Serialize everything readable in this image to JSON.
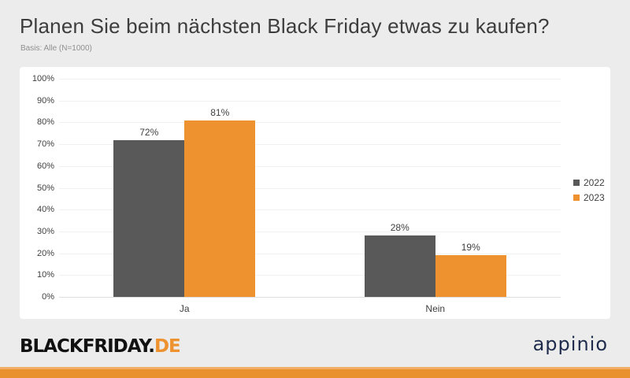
{
  "header": {
    "title": "Planen Sie beim nächsten Black Friday etwas zu kaufen?",
    "subtitle": "Basis: Alle (N=1000)"
  },
  "chart_data": {
    "type": "bar",
    "categories": [
      "Ja",
      "Nein"
    ],
    "series": [
      {
        "name": "2022",
        "color": "#595959",
        "values": [
          72,
          28
        ]
      },
      {
        "name": "2023",
        "color": "#ED922E",
        "values": [
          81,
          19
        ]
      }
    ],
    "value_suffix": "%",
    "ylim": [
      0,
      100
    ],
    "ytick_step": 10,
    "ytick_suffix": "%",
    "grid": true,
    "legend_position": "right",
    "title": "Planen Sie beim nächsten Black Friday etwas zu kaufen?",
    "xlabel": "",
    "ylabel": ""
  },
  "footer": {
    "blackfriday_logo_black": "BLACKFRIDAY.",
    "blackfriday_logo_orange": "DE",
    "appinio_logo": "appinio"
  },
  "colors": {
    "series_2022": "#595959",
    "series_2023": "#ED922E",
    "accent_orange": "#ED922E",
    "page_background": "#ECECEC",
    "panel_background": "#FFFFFF",
    "appinio_navy": "#1E2B4C"
  }
}
